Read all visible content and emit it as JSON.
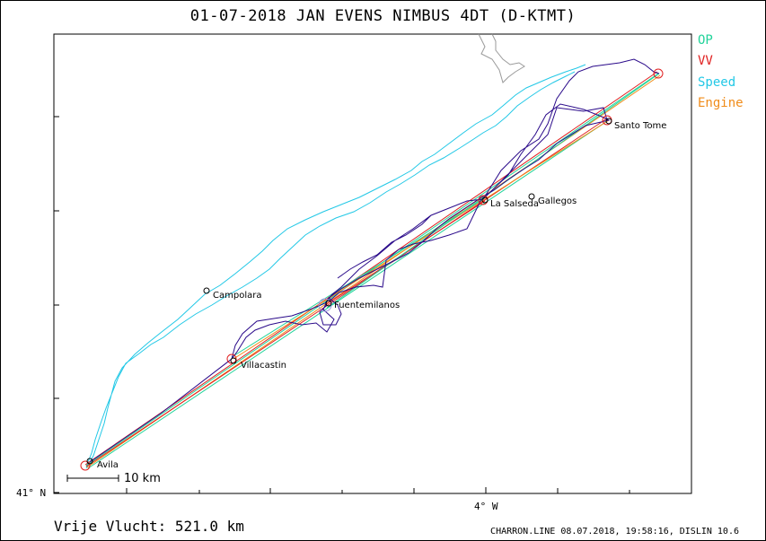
{
  "header": {
    "title": "01-07-2018   JAN EVENS   NIMBUS 4DT (D-KTMT)"
  },
  "legend": {
    "items": [
      {
        "label": "OP",
        "color": "#22d39a"
      },
      {
        "label": "VV",
        "color": "#e02020"
      },
      {
        "label": "Speed",
        "color": "#22c8e6"
      },
      {
        "label": "Engine",
        "color": "#f08c1a"
      }
    ]
  },
  "axis": {
    "lat_label": "41° N",
    "lon_label": "4° W"
  },
  "scale": {
    "label": "10 km"
  },
  "places": [
    {
      "name": "Avila"
    },
    {
      "name": "Villacastin"
    },
    {
      "name": "Campolara"
    },
    {
      "name": "Fuentemilanos"
    },
    {
      "name": "La Salseda"
    },
    {
      "name": "Gallegos"
    },
    {
      "name": "Santo Tome"
    }
  ],
  "footer": {
    "distance_label": "Vrije Vlucht:  521.0 km",
    "credit": "CHARRON.LINE 08.07.2018, 19:58:16, DISLIN 10.6"
  },
  "colors": {
    "track": "#2a0a8a",
    "speed_trace": "#22c8e6",
    "turnpoint": "#e02020"
  }
}
